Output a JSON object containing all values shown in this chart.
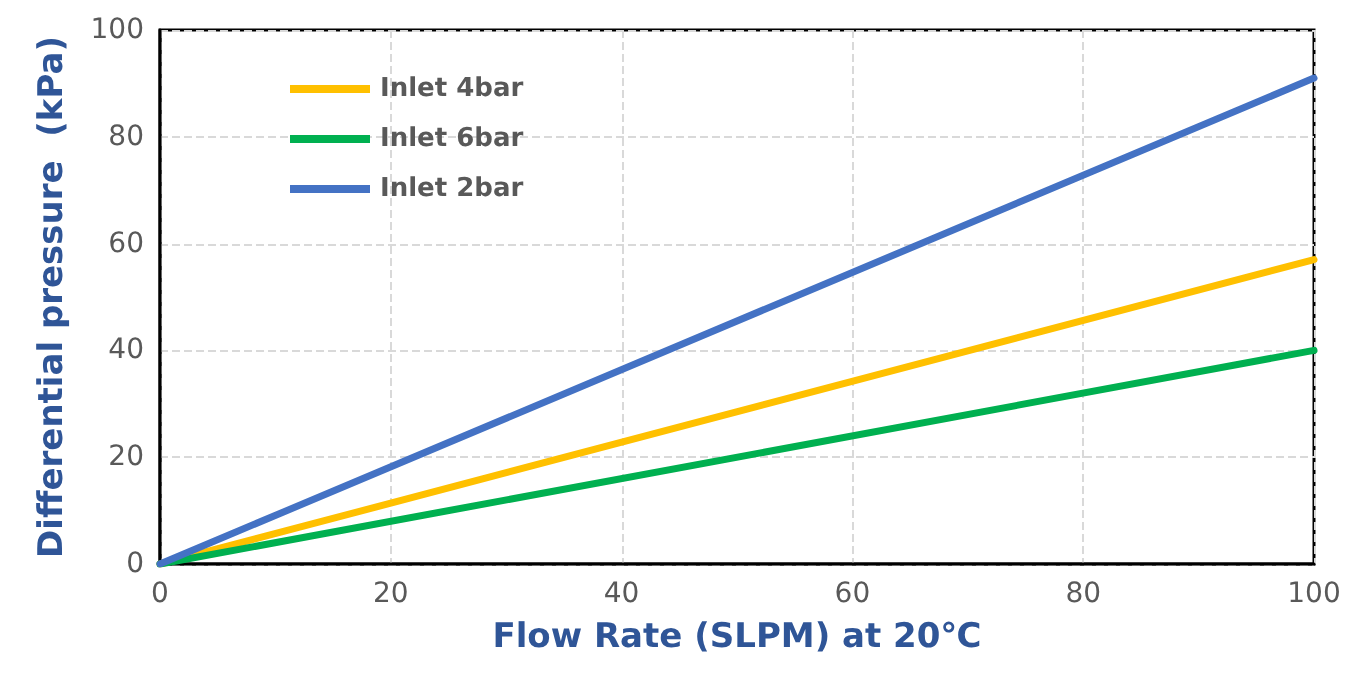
{
  "chart_data": {
    "type": "line",
    "xlabel": "Flow Rate (SLPM) at 20℃",
    "ylabel": "Differential pressure  (kPa)",
    "x": [
      0,
      100
    ],
    "series": [
      {
        "name": "Inlet 4bar",
        "color": "#ffc000",
        "values": [
          0,
          57
        ]
      },
      {
        "name": "Inlet 6bar",
        "color": "#00b050",
        "values": [
          0,
          40
        ]
      },
      {
        "name": "Inlet 2bar",
        "color": "#4472c4",
        "values": [
          0,
          91
        ]
      }
    ],
    "xlim": [
      0,
      100
    ],
    "xticks": [
      0,
      20,
      40,
      60,
      80,
      100
    ],
    "ylim": [
      0,
      100
    ],
    "yticks": [
      0,
      20,
      40,
      60,
      80,
      100
    ],
    "grid": true,
    "legend": "top left",
    "marker": "none",
    "line_style": "solid"
  }
}
